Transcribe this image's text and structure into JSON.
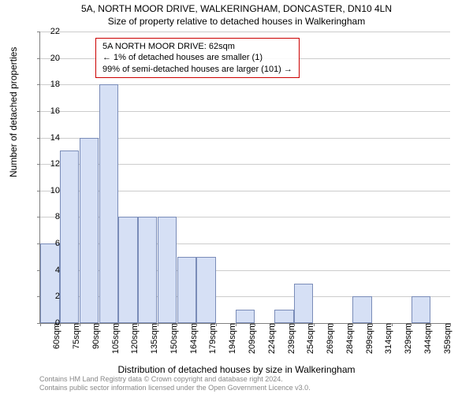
{
  "chart": {
    "title_main": "5A, NORTH MOOR DRIVE, WALKERINGHAM, DONCASTER, DN10 4LN",
    "title_sub": "Size of property relative to detached houses in Walkeringham",
    "y_axis_label": "Number of detached properties",
    "x_axis_label": "Distribution of detached houses by size in Walkeringham",
    "ylim": [
      0,
      22
    ],
    "ytick_step": 2,
    "yticks": [
      0,
      2,
      4,
      6,
      8,
      10,
      12,
      14,
      16,
      18,
      20,
      22
    ],
    "xticks": [
      "60sqm",
      "75sqm",
      "90sqm",
      "105sqm",
      "120sqm",
      "135sqm",
      "150sqm",
      "164sqm",
      "179sqm",
      "194sqm",
      "209sqm",
      "224sqm",
      "239sqm",
      "254sqm",
      "269sqm",
      "284sqm",
      "299sqm",
      "314sqm",
      "329sqm",
      "344sqm",
      "359sqm"
    ],
    "values": [
      6,
      13,
      14,
      18,
      8,
      8,
      8,
      5,
      5,
      0,
      1,
      0,
      1,
      3,
      0,
      0,
      2,
      0,
      0,
      2,
      0
    ],
    "bar_fill": "#d6e0f5",
    "bar_border": "#7a8cb8",
    "grid_color": "#cccccc",
    "axis_color": "#808080",
    "info_box": {
      "line1": "5A NORTH MOOR DRIVE: 62sqm",
      "line2": "← 1% of detached houses are smaller (1)",
      "line3": "99% of semi-detached houses are larger (101) →",
      "border_color": "#cc0000"
    }
  },
  "footer": {
    "line1": "Contains HM Land Registry data © Crown copyright and database right 2024.",
    "line2": "Contains public sector information licensed under the Open Government Licence v3.0."
  }
}
